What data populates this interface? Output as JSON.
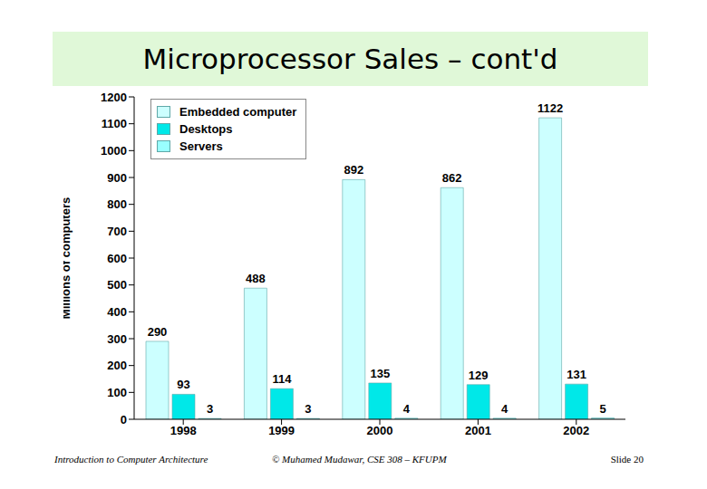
{
  "chart_data": {
    "type": "bar",
    "title": "Microprocessor Sales – cont'd",
    "y_label": "Millions of computers",
    "categories": [
      "1998",
      "1999",
      "2000",
      "2001",
      "2002"
    ],
    "series": [
      {
        "name": "Embedded computer",
        "color": "#ccffff",
        "values": [
          290,
          488,
          892,
          862,
          1122
        ]
      },
      {
        "name": "Desktops",
        "color": "#00e8e8",
        "values": [
          93,
          114,
          135,
          129,
          131
        ]
      },
      {
        "name": "Servers",
        "color": "#99ffff",
        "values": [
          3,
          3,
          4,
          4,
          5
        ]
      }
    ],
    "ylim": [
      0,
      1200
    ],
    "yticks": [
      0,
      100,
      200,
      300,
      400,
      500,
      600,
      700,
      800,
      900,
      1000,
      1100,
      1200
    ],
    "grid": false,
    "legend": "upper left",
    "data_labels": true
  },
  "footer": {
    "left": "Introduction to Computer Architecture",
    "center": "© Muhamed Mudawar, CSE 308 – KFUPM",
    "right": "Slide 20"
  }
}
